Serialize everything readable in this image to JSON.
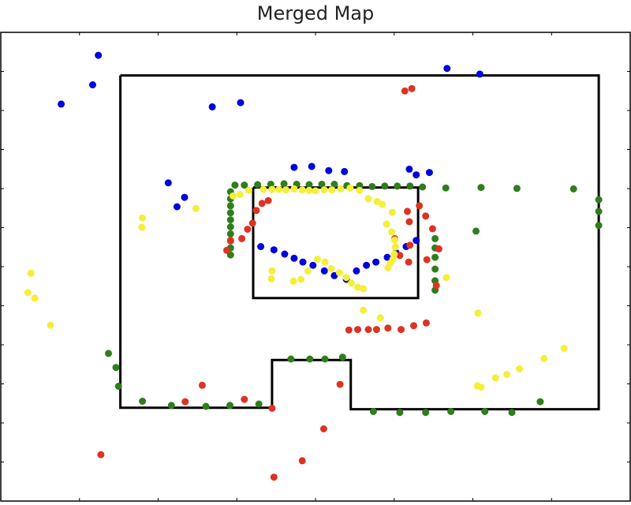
{
  "chart_data": {
    "type": "scatter",
    "title": "Merged Map",
    "xlabel": "",
    "ylabel": "",
    "grid": false,
    "legend": "none",
    "xlim": [
      0,
      100
    ],
    "ylim": [
      0,
      100
    ],
    "walls": [
      [
        [
          19,
          90.8
        ],
        [
          95,
          90.8
        ],
        [
          95,
          19.6
        ],
        [
          55.6,
          19.6
        ],
        [
          55.6,
          30.1
        ],
        [
          43.1,
          30.1
        ],
        [
          43.1,
          19.9
        ],
        [
          19,
          19.9
        ],
        [
          19,
          90.8
        ]
      ],
      [
        [
          40.1,
          66.9
        ],
        [
          66.3,
          66.9
        ],
        [
          66.3,
          43.3
        ],
        [
          40.1,
          43.3
        ],
        [
          40.1,
          66.9
        ]
      ]
    ],
    "series": [
      {
        "color": "#0000dd",
        "x": [
          15.5,
          14.6,
          9.6,
          33.6,
          38.1,
          26.6,
          29.2,
          28.0,
          46.6,
          49.4,
          52.1,
          54.6,
          64.9,
          70.9,
          76.1,
          66.0,
          68.1,
          41.3,
          43.4,
          45.1,
          46.6,
          48.0,
          49.6,
          51.4,
          53.0,
          54.9,
          56.5,
          58.1,
          59.6,
          61.4,
          62.8,
          64.4,
          66.0
        ],
        "y": [
          95.1,
          88.8,
          84.7,
          84.1,
          85.0,
          67.9,
          64.8,
          62.8,
          71.2,
          71.4,
          70.5,
          70.3,
          70.8,
          92.3,
          91.1,
          69.6,
          70.1,
          54.3,
          53.6,
          52.7,
          51.8,
          51.0,
          50.3,
          49.1,
          48.1,
          47.3,
          49.1,
          50.3,
          51.0,
          52.0,
          53.0,
          54.3,
          55.6
        ]
      },
      {
        "color": "#2f7d1c",
        "x": [
          37.2,
          38.7,
          40.8,
          42.9,
          45.0,
          47.0,
          49.0,
          51.0,
          53.0,
          55.0,
          57.0,
          59.0,
          61.0,
          63.0,
          65.0,
          67.0,
          70.7,
          76.3,
          82.0,
          91.0,
          95.0,
          95.0,
          95.0,
          36.5,
          36.5,
          36.5,
          36.5,
          36.5,
          36.5,
          36.5,
          36.5,
          36.5,
          36.5,
          75.5,
          17.1,
          18.3,
          18.7,
          22.5,
          27.1,
          32.6,
          36.4,
          41.0,
          46.1,
          49.1,
          51.5,
          54.3,
          59.2,
          63.4,
          67.5,
          71.5,
          76.9,
          81.2,
          85.7,
          69.0,
          69.0,
          69.0,
          69.0,
          69.0,
          69.0
        ],
        "y": [
          67.4,
          67.4,
          67.5,
          67.6,
          67.7,
          67.6,
          67.5,
          67.6,
          67.6,
          67.3,
          67.3,
          67.1,
          67.2,
          67.2,
          67.2,
          67.0,
          66.8,
          66.9,
          66.7,
          66.6,
          64.3,
          61.8,
          58.8,
          66.0,
          64.5,
          63.0,
          61.5,
          60.0,
          58.5,
          57.0,
          55.5,
          54.0,
          52.5,
          57.6,
          31.5,
          28.5,
          24.5,
          21.3,
          20.4,
          20.2,
          20.4,
          20.7,
          30.3,
          30.3,
          30.3,
          30.7,
          19.1,
          18.9,
          18.9,
          19.1,
          19.1,
          18.9,
          21.2,
          56.0,
          54.0,
          52.0,
          49.5,
          47.0,
          45.0
        ],
        "_note": ""
      },
      {
        "color": "#dd3322",
        "x": [
          64.2,
          65.3,
          66.5,
          67.5,
          68.6,
          69.6,
          35.9,
          36.5,
          38.3,
          39.2,
          40.0,
          40.6,
          41.5,
          42.5,
          62.6,
          63.4,
          64.8,
          65.0,
          64.9,
          64.6,
          67.7,
          69.2,
          55.3,
          56.7,
          58.4,
          59.7,
          61.5,
          63.6,
          65.6,
          67.6,
          29.3,
          32.0,
          38.7,
          43.1,
          53.9,
          51.3,
          47.9,
          15.9,
          43.4
        ],
        "y": [
          87.5,
          88.0,
          63.0,
          60.8,
          58.1,
          53.8,
          53.5,
          55.6,
          56.0,
          58.0,
          59.3,
          62.0,
          63.5,
          64.1,
          56.0,
          52.4,
          51.0,
          54.6,
          59.6,
          61.8,
          51.5,
          46.0,
          36.5,
          36.6,
          36.6,
          36.6,
          36.9,
          36.6,
          37.4,
          38.0,
          21.2,
          24.7,
          21.7,
          19.8,
          24.9,
          15.4,
          8.6,
          9.9,
          5.1
        ]
      },
      {
        "color": "#f5ee3a",
        "x": [
          4.8,
          4.3,
          5.4,
          7.9,
          22.5,
          22.4,
          31.0,
          36.9,
          38.0,
          39.4,
          41.7,
          43.1,
          44.2,
          45.3,
          46.6,
          47.9,
          49.0,
          50.0,
          51.4,
          52.6,
          54.0,
          55.5,
          57.0,
          58.4,
          59.8,
          60.6,
          62.2,
          61.3,
          62.1,
          62.6,
          62.7,
          62.5,
          62.3,
          61.9,
          61.5,
          43.1,
          46.5,
          47.7,
          48.8,
          50.3,
          51.5,
          52.5,
          53.8,
          54.9,
          55.7,
          56.7,
          57.6,
          43.0,
          57.6,
          60.3,
          70.8,
          75.8,
          80.4,
          75.7,
          78.6,
          82.4,
          86.3,
          89.5,
          76.3
        ],
        "y": [
          48.6,
          44.5,
          43.3,
          37.5,
          60.4,
          58.4,
          62.4,
          65.1,
          65.4,
          66.3,
          66.5,
          66.5,
          66.5,
          66.4,
          66.6,
          66.4,
          66.3,
          66.2,
          66.4,
          66.4,
          66.6,
          66.8,
          66.3,
          64.5,
          63.9,
          63.3,
          61.6,
          59.1,
          57.4,
          55.7,
          54.2,
          52.7,
          51.6,
          50.8,
          49.8,
          49.1,
          46.9,
          47.3,
          49.1,
          51.6,
          51.0,
          49.6,
          48.7,
          47.7,
          46.5,
          45.6,
          45.3,
          47.4,
          40.7,
          39.1,
          47.7,
          40.1,
          27.0,
          24.6,
          26.3,
          28.2,
          30.4,
          32.6,
          24.3
        ]
      }
    ]
  }
}
